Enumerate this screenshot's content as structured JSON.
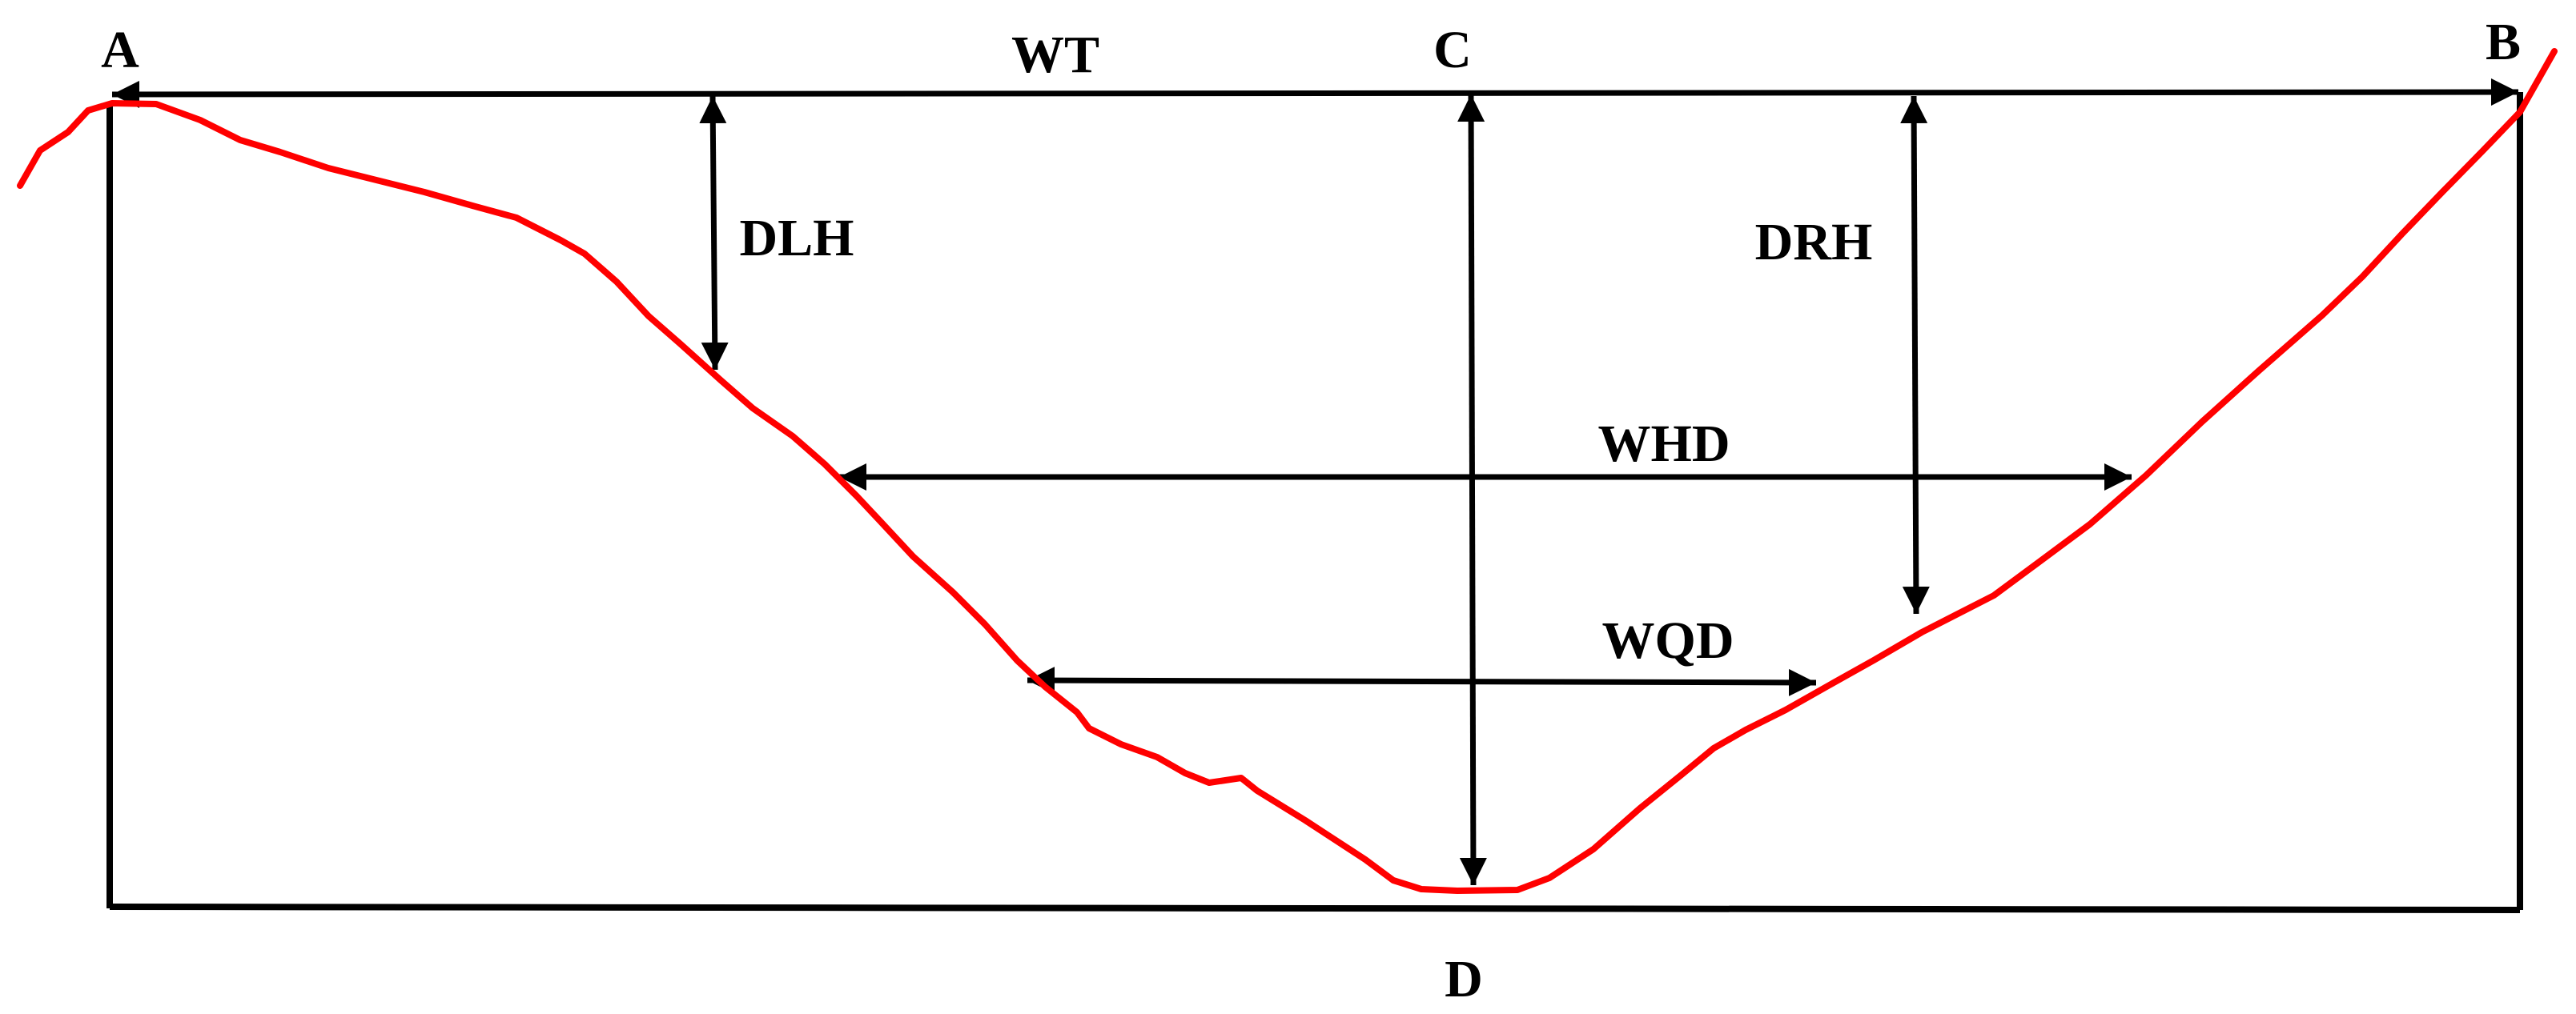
{
  "diagram": {
    "labels": {
      "a": "A",
      "b": "B",
      "c": "C",
      "d": "D",
      "wt": "WT",
      "dlh": "DLH",
      "drh": "DRH",
      "whd": "WHD",
      "wqd": "WQD"
    },
    "colors": {
      "frame": "#000000",
      "profile": "#ff0000",
      "background": "#ffffff"
    }
  }
}
